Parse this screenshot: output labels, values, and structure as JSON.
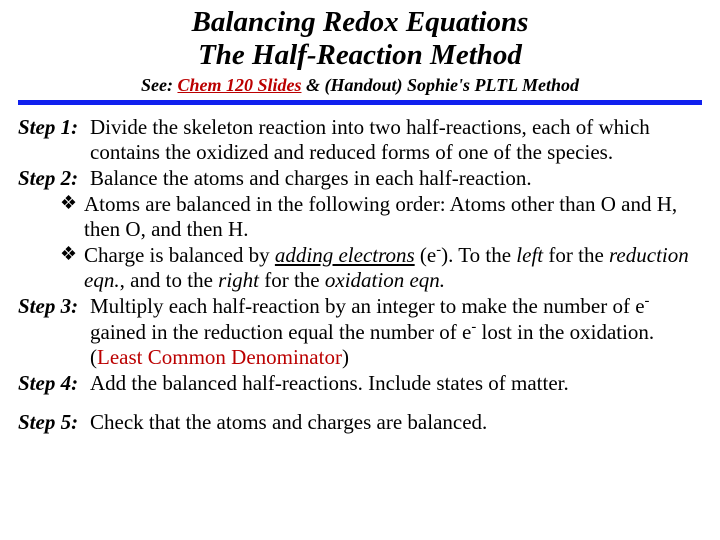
{
  "title_line1": "Balancing Redox Equations",
  "title_line2": "The Half-Reaction Method",
  "subtitle_pre": "See: ",
  "subtitle_link": "Chem 120 Slides",
  "subtitle_post": " & (Handout) Sophie's PLTL Method",
  "steps": {
    "s1": {
      "label": "Step 1:",
      "text": "Divide the skeleton reaction into two half-reactions, each of which contains the oxidized and reduced forms of one of the species."
    },
    "s2": {
      "label": "Step 2:",
      "text": "Balance the atoms and charges in each half-reaction."
    },
    "s3": {
      "label": "Step 3:",
      "text_a": "Multiply each half-reaction by an integer to make the number of e",
      "text_b": " gained in the reduction equal the number of e",
      "text_c": " lost in the oxidation. (",
      "lcd": "Least Common Denominator",
      "text_d": ")"
    },
    "s4": {
      "label": "Step 4:",
      "text": "Add the balanced half-reactions. Include states of matter."
    },
    "s5": {
      "label": "Step 5:",
      "text": "Check that the atoms and charges are balanced."
    }
  },
  "bullets": {
    "b1": "Atoms are balanced in the following order: Atoms other than O and H, then O, and then H.",
    "b2_a": "Charge is balanced by ",
    "b2_adding": "adding electrons",
    "b2_b": " (e",
    "b2_c": "). To the ",
    "b2_left": "left",
    "b2_d": " for the ",
    "b2_red": "reduction eqn.",
    "b2_e": ", and to the ",
    "b2_right": "right",
    "b2_f": " for the ",
    "b2_ox": "oxidation eqn."
  },
  "colors": {
    "rule": "#1020ee",
    "link": "#bb0000",
    "text": "#000000",
    "bg": "#ffffff"
  }
}
